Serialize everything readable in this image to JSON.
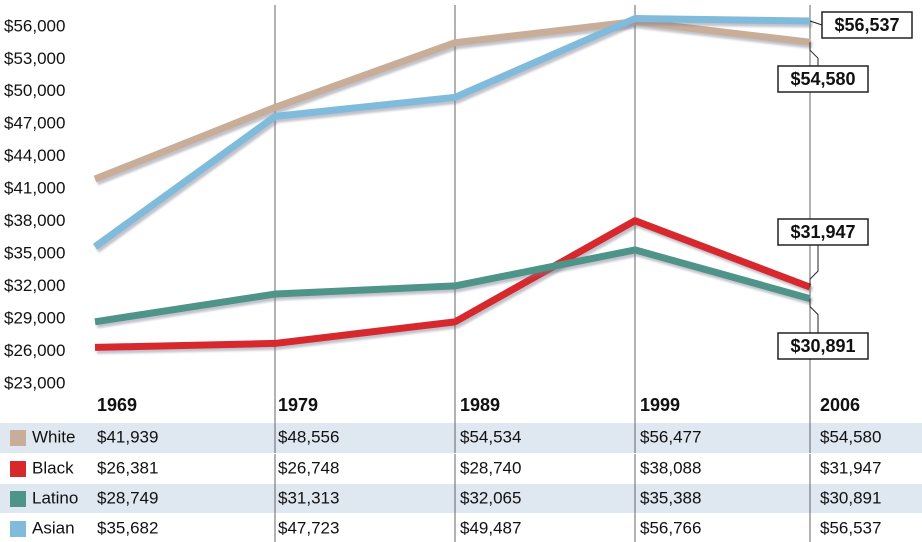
{
  "chart_data": {
    "type": "line",
    "categories": [
      "1969",
      "1979",
      "1989",
      "1999",
      "2006"
    ],
    "series": [
      {
        "name": "White",
        "color": "#c8ae98",
        "values": [
          41939,
          48556,
          54534,
          56477,
          54580
        ],
        "value_labels": [
          "$41,939",
          "$48,556",
          "$54,534",
          "$56,477",
          "$54,580"
        ]
      },
      {
        "name": "Black",
        "color": "#d7282d",
        "values": [
          26381,
          26748,
          28740,
          38088,
          31947
        ],
        "value_labels": [
          "$26,381",
          "$26,748",
          "$28,740",
          "$38,088",
          "$31,947"
        ]
      },
      {
        "name": "Latino",
        "color": "#4f9488",
        "values": [
          28749,
          31313,
          32065,
          35388,
          30891
        ],
        "value_labels": [
          "$28,749",
          "$31,313",
          "$32,065",
          "$35,388",
          "$30,891"
        ]
      },
      {
        "name": "Asian",
        "color": "#80bbdc",
        "values": [
          35682,
          47723,
          49487,
          56766,
          56537
        ],
        "value_labels": [
          "$35,682",
          "$47,723",
          "$49,487",
          "$56,766",
          "$56,537"
        ]
      }
    ],
    "ylim": [
      23000,
      57000
    ],
    "yticks": [
      {
        "value": 23000,
        "label": "$23,000"
      },
      {
        "value": 26000,
        "label": "$26,000"
      },
      {
        "value": 29000,
        "label": "$29,000"
      },
      {
        "value": 32000,
        "label": "$32,000"
      },
      {
        "value": 35000,
        "label": "$35,000"
      },
      {
        "value": 38000,
        "label": "$38,000"
      },
      {
        "value": 41000,
        "label": "$41,000"
      },
      {
        "value": 44000,
        "label": "$44,000"
      },
      {
        "value": 47000,
        "label": "$47,000"
      },
      {
        "value": 50000,
        "label": "$50,000"
      },
      {
        "value": 53000,
        "label": "$53,000"
      },
      {
        "value": 56000,
        "label": "$56,000"
      }
    ],
    "grid": false
  }
}
